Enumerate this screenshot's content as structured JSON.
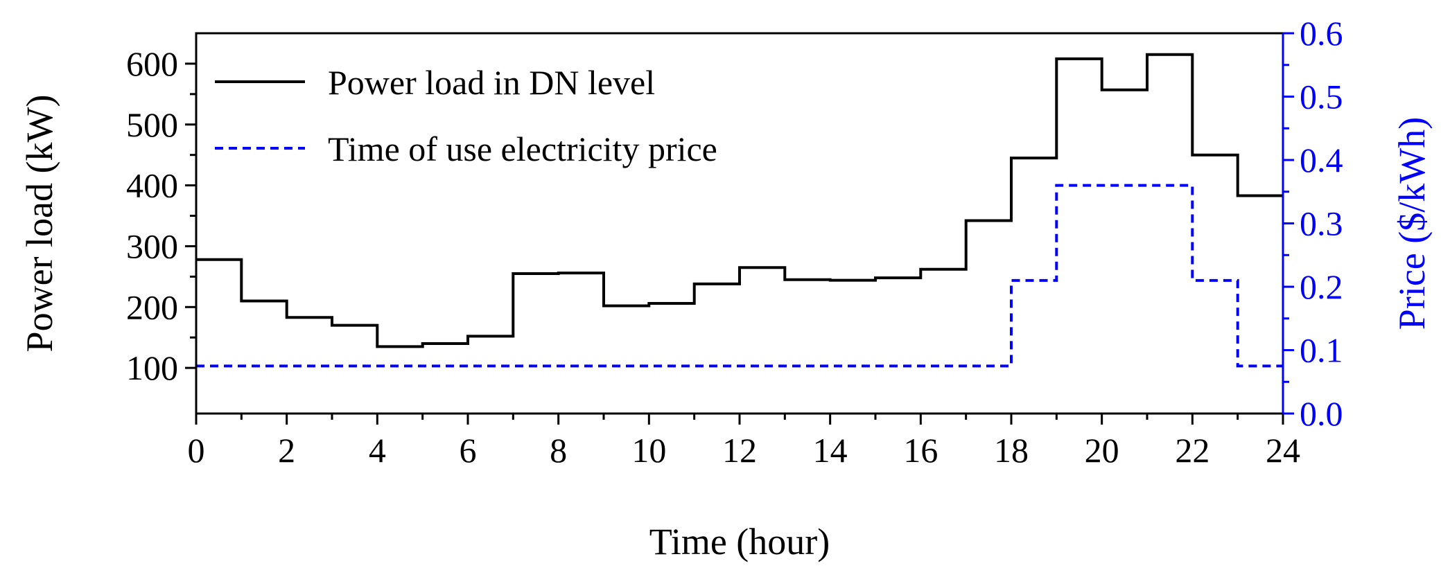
{
  "chart_data": {
    "type": "line",
    "step": true,
    "title": "",
    "xlabel": "Time (hour)",
    "ylabel": "Power load (kW)",
    "y2label": "Price ($/kWh)",
    "xlim": [
      0,
      24
    ],
    "ylim": [
      25,
      650
    ],
    "y2lim": [
      0.0,
      0.6
    ],
    "xticks": [
      0,
      2,
      4,
      6,
      8,
      10,
      12,
      14,
      16,
      18,
      20,
      22,
      24
    ],
    "xtick_labels": [
      "0",
      "2",
      "4",
      "6",
      "8",
      "10",
      "12",
      "14",
      "16",
      "18",
      "20",
      "22",
      "24"
    ],
    "yticks": [
      100,
      200,
      300,
      400,
      500,
      600
    ],
    "ytick_labels": [
      "100",
      "200",
      "300",
      "400",
      "500",
      "600"
    ],
    "y2ticks": [
      0.0,
      0.1,
      0.2,
      0.3,
      0.4,
      0.5,
      0.6
    ],
    "y2tick_labels": [
      "0.0",
      "0.1",
      "0.2",
      "0.3",
      "0.4",
      "0.5",
      "0.6"
    ],
    "legend_position": "top-left",
    "colors": {
      "load": "#000000",
      "price": "#0000ff",
      "right_axis": "#0000ff"
    },
    "series": [
      {
        "name": "Power load in DN level",
        "axis": "left",
        "style": "solid",
        "x": [
          0,
          1,
          2,
          3,
          4,
          5,
          6,
          7,
          8,
          9,
          10,
          11,
          12,
          13,
          14,
          15,
          16,
          17,
          18,
          19,
          20,
          21,
          22,
          23,
          24
        ],
        "values": [
          278,
          210,
          183,
          170,
          135,
          140,
          152,
          255,
          256,
          202,
          206,
          238,
          265,
          245,
          244,
          248,
          262,
          342,
          445,
          608,
          557,
          615,
          450,
          383,
          383
        ]
      },
      {
        "name": "Time of use electricity price",
        "axis": "right",
        "style": "dashed",
        "x": [
          0,
          18,
          19,
          22,
          23,
          24
        ],
        "values": [
          0.075,
          0.21,
          0.36,
          0.21,
          0.075,
          0.075
        ]
      }
    ]
  }
}
